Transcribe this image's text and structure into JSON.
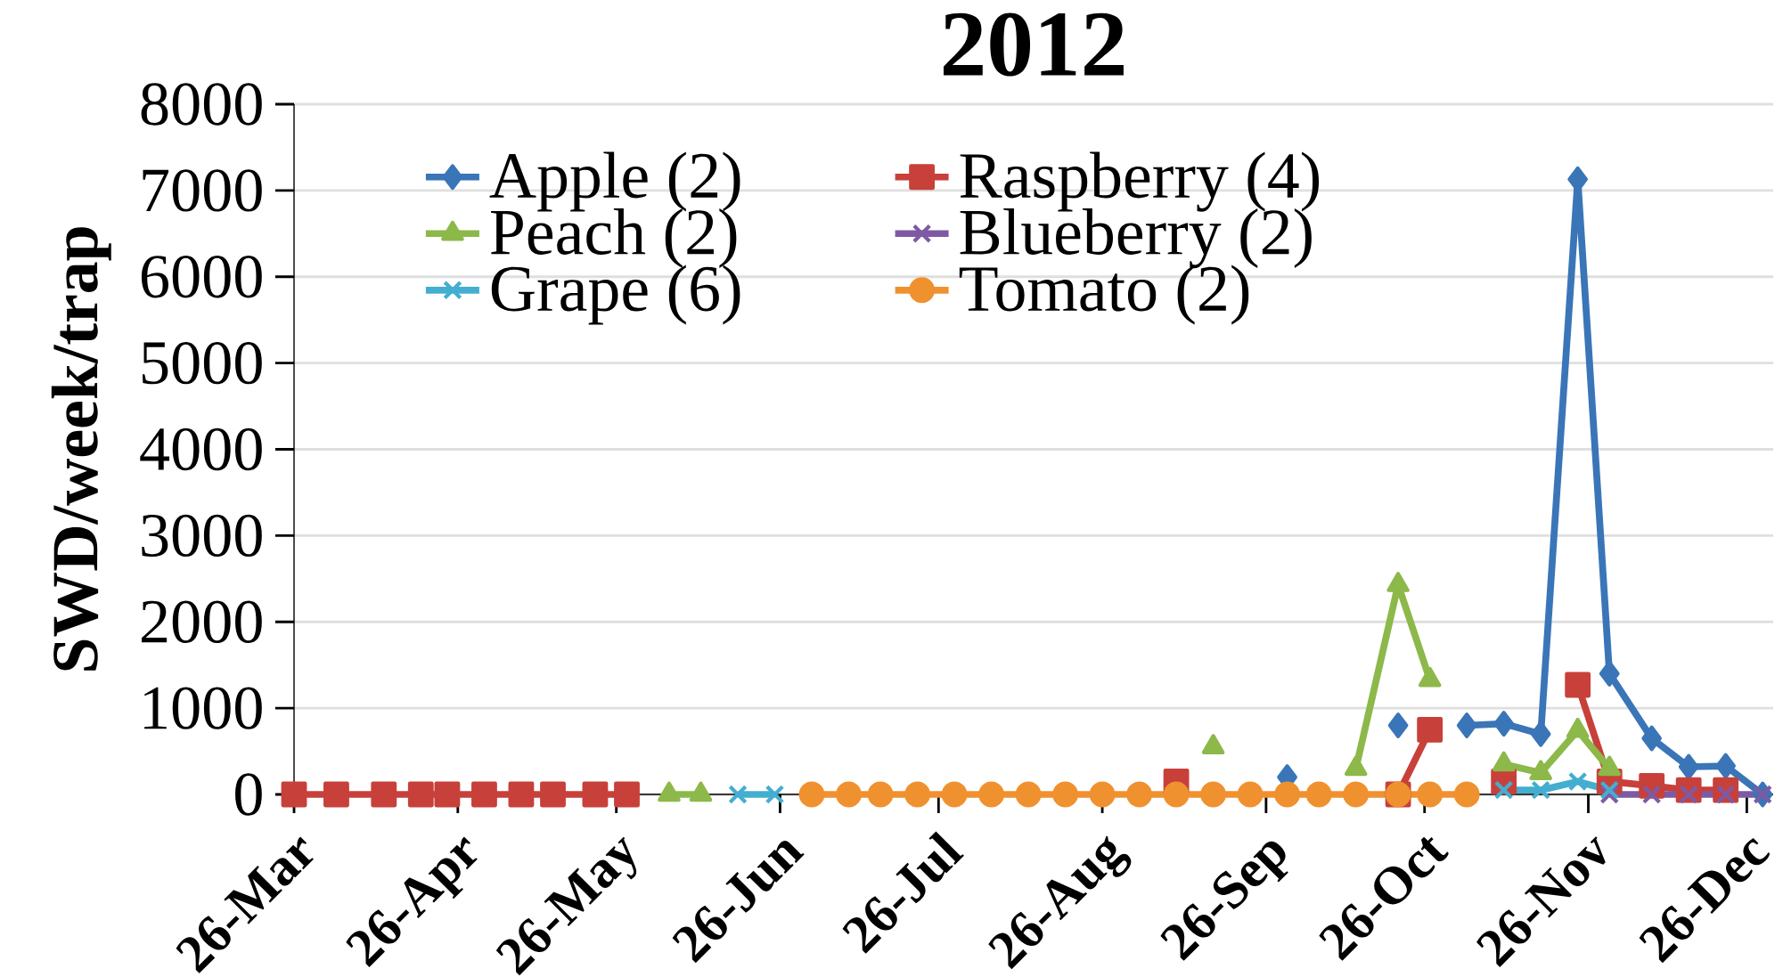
{
  "chart_data": {
    "type": "line",
    "title": "2012",
    "ylabel": "SWD/week/trap",
    "x": [
      "2012-03-26",
      "2012-04-03",
      "2012-04-12",
      "2012-04-19",
      "2012-04-24",
      "2012-05-01",
      "2012-05-08",
      "2012-05-14",
      "2012-05-22",
      "2012-05-28",
      "2012-06-05",
      "2012-06-11",
      "2012-06-18",
      "2012-06-25",
      "2012-07-02",
      "2012-07-09",
      "2012-07-15",
      "2012-07-22",
      "2012-07-29",
      "2012-08-05",
      "2012-08-12",
      "2012-08-19",
      "2012-08-26",
      "2012-09-02",
      "2012-09-09",
      "2012-09-16",
      "2012-09-23",
      "2012-09-30",
      "2012-10-06",
      "2012-10-13",
      "2012-10-21",
      "2012-10-27",
      "2012-11-03",
      "2012-11-10",
      "2012-11-17",
      "2012-11-24",
      "2012-11-30",
      "2012-12-08",
      "2012-12-15",
      "2012-12-22",
      "2012-12-29"
    ],
    "xlim": [
      "2012-03-26",
      "2012-12-31"
    ],
    "xticks": [
      {
        "value": "2012-03-26",
        "label": "26-Mar"
      },
      {
        "value": "2012-04-26",
        "label": "26-Apr"
      },
      {
        "value": "2012-05-26",
        "label": "26-May"
      },
      {
        "value": "2012-06-26",
        "label": "26-Jun"
      },
      {
        "value": "2012-07-26",
        "label": "26-Jul"
      },
      {
        "value": "2012-08-26",
        "label": "26-Aug"
      },
      {
        "value": "2012-09-26",
        "label": "26-Sep"
      },
      {
        "value": "2012-10-26",
        "label": "26-Oct"
      },
      {
        "value": "2012-11-26",
        "label": "26-Nov"
      },
      {
        "value": "2012-12-26",
        "label": "26-Dec"
      }
    ],
    "ylim": [
      0,
      8000
    ],
    "yticks": [
      0,
      1000,
      2000,
      3000,
      4000,
      5000,
      6000,
      7000,
      8000
    ],
    "grid": "y",
    "legend": "top left",
    "line_style": "solid",
    "series": [
      {
        "name": "Apple (2)",
        "color": "#3a75b8",
        "marker": "diamond",
        "values": [
          null,
          null,
          null,
          null,
          null,
          null,
          null,
          null,
          null,
          null,
          null,
          null,
          null,
          null,
          null,
          null,
          null,
          null,
          null,
          null,
          null,
          null,
          null,
          null,
          null,
          null,
          null,
          200,
          null,
          null,
          800,
          null,
          800,
          820,
          700,
          7130,
          1400,
          650,
          320,
          330,
          0
        ]
      },
      {
        "name": "Raspberry (4)",
        "color": "#c8403a",
        "marker": "square",
        "values": [
          0,
          0,
          0,
          0,
          0,
          0,
          0,
          0,
          0,
          0,
          null,
          null,
          null,
          null,
          null,
          null,
          null,
          null,
          null,
          null,
          null,
          null,
          null,
          null,
          150,
          null,
          null,
          null,
          null,
          null,
          0,
          750,
          null,
          150,
          null,
          1270,
          150,
          100,
          50,
          50,
          null
        ]
      },
      {
        "name": "Peach (2)",
        "color": "#8db84a",
        "marker": "triangle",
        "values": [
          null,
          null,
          null,
          null,
          null,
          null,
          null,
          null,
          null,
          null,
          0,
          0,
          null,
          null,
          null,
          null,
          null,
          null,
          null,
          null,
          null,
          null,
          null,
          null,
          null,
          550,
          null,
          null,
          null,
          300,
          2430,
          1330,
          null,
          350,
          250,
          740,
          300,
          null,
          null,
          null,
          null
        ]
      },
      {
        "name": "Blueberry (2)",
        "color": "#7e5aa3",
        "marker": "cross",
        "values": [
          null,
          null,
          null,
          null,
          null,
          null,
          null,
          null,
          null,
          null,
          null,
          null,
          null,
          null,
          null,
          null,
          null,
          null,
          null,
          null,
          null,
          null,
          null,
          null,
          null,
          null,
          null,
          null,
          null,
          null,
          null,
          null,
          null,
          null,
          null,
          null,
          0,
          0,
          0,
          0,
          0
        ]
      },
      {
        "name": "Grape (6)",
        "color": "#43aed0",
        "marker": "cross",
        "values": [
          null,
          null,
          null,
          null,
          null,
          null,
          null,
          null,
          null,
          null,
          null,
          null,
          0,
          0,
          null,
          null,
          null,
          null,
          null,
          null,
          null,
          null,
          null,
          null,
          null,
          null,
          null,
          null,
          null,
          null,
          null,
          null,
          null,
          50,
          50,
          150,
          50,
          null,
          null,
          null,
          null
        ]
      },
      {
        "name": "Tomato (2)",
        "color": "#f0912f",
        "marker": "circle",
        "values": [
          null,
          null,
          null,
          null,
          null,
          null,
          null,
          null,
          null,
          null,
          null,
          null,
          null,
          null,
          0,
          0,
          0,
          0,
          0,
          0,
          0,
          0,
          0,
          0,
          0,
          0,
          0,
          0,
          0,
          0,
          0,
          0,
          0,
          null,
          null,
          null,
          null,
          null,
          null,
          null,
          null
        ]
      }
    ]
  }
}
